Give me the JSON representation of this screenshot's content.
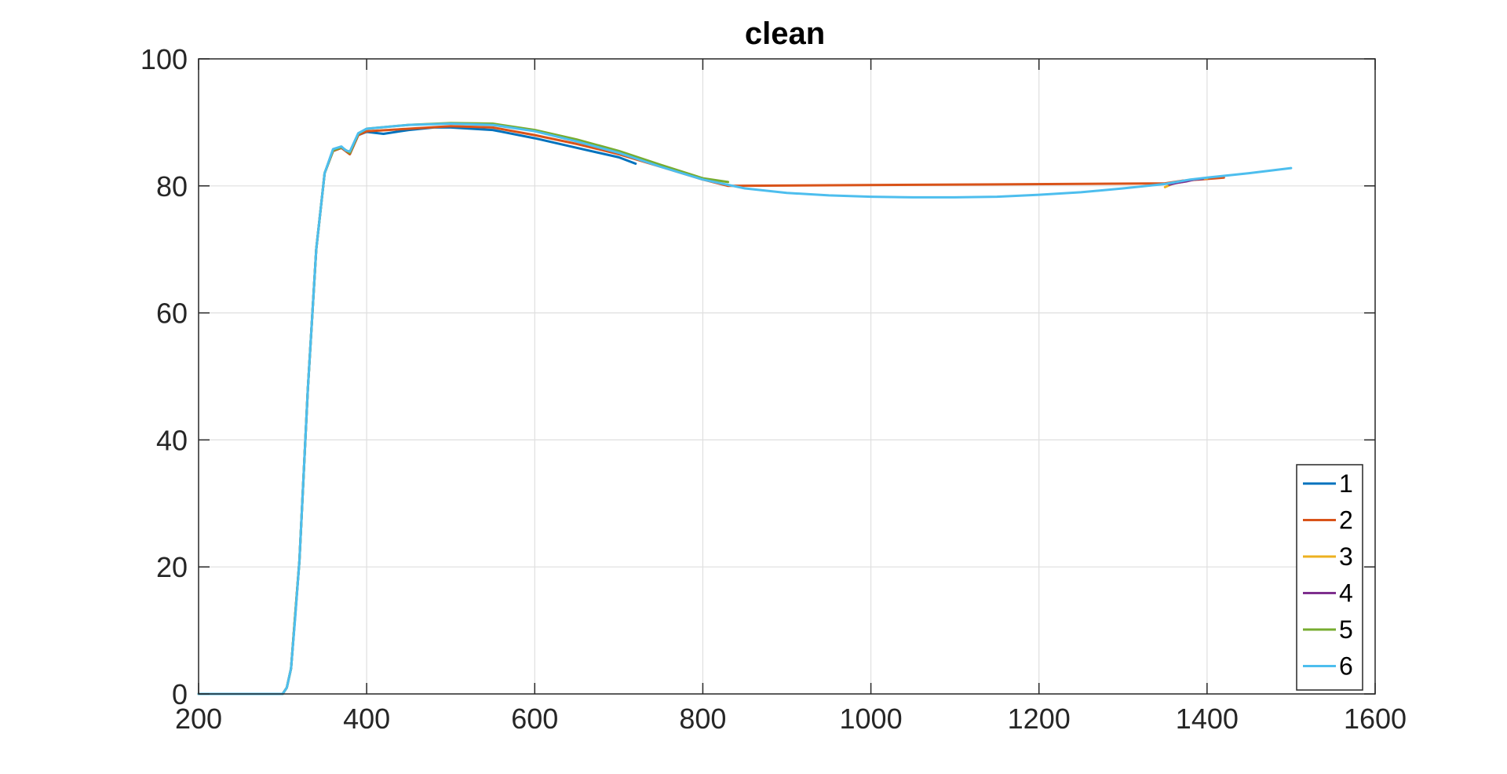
{
  "chart_data": {
    "type": "line",
    "title": "clean",
    "xlabel": "",
    "ylabel": "",
    "xlim": [
      200,
      1600
    ],
    "ylim": [
      0,
      100
    ],
    "xticks": [
      200,
      400,
      600,
      800,
      1000,
      1200,
      1400,
      1600
    ],
    "yticks": [
      0,
      20,
      40,
      60,
      80,
      100
    ],
    "xtick_labels": [
      "200",
      "400",
      "600",
      "800",
      "1000",
      "1200",
      "1400",
      "1600"
    ],
    "ytick_labels": [
      "0",
      "20",
      "40",
      "60",
      "80",
      "100"
    ],
    "grid": true,
    "legend_position": "bottom-right",
    "series": [
      {
        "name": "1",
        "color": "#0072BD",
        "x": [
          200,
          300,
          305,
          310,
          320,
          330,
          340,
          350,
          360,
          370,
          380,
          390,
          400,
          420,
          450,
          480,
          500,
          550,
          600,
          650,
          700,
          720
        ],
        "y": [
          0,
          0,
          1,
          4,
          21,
          48,
          70,
          82,
          85.5,
          86,
          85,
          88,
          88.5,
          88.2,
          88.8,
          89.2,
          89.2,
          88.8,
          87.5,
          86,
          84.5,
          83.5
        ]
      },
      {
        "name": "2",
        "color": "#D95319",
        "x": [
          200,
          300,
          305,
          310,
          320,
          330,
          340,
          350,
          360,
          370,
          380,
          390,
          400,
          450,
          500,
          550,
          600,
          650,
          700,
          750,
          800,
          830,
          1350,
          1370,
          1390,
          1410,
          1420
        ],
        "y": [
          0,
          0,
          1,
          4,
          21,
          48,
          70,
          82,
          85.5,
          86,
          85,
          88,
          88.6,
          89,
          89.4,
          89.2,
          88,
          86.6,
          85,
          83,
          81,
          80,
          80.4,
          80.8,
          81,
          81.2,
          81.3
        ]
      },
      {
        "name": "3",
        "color": "#EDB120",
        "x": [
          1350,
          1360,
          1370,
          1380,
          1390,
          1400
        ],
        "y": [
          79.8,
          80.4,
          80.6,
          80.9,
          81.1,
          81.2
        ]
      },
      {
        "name": "4",
        "color": "#7E2F8E",
        "x": [
          1355,
          1365,
          1375,
          1385,
          1395
        ],
        "y": [
          80.2,
          80.5,
          80.7,
          81,
          81.1
        ]
      },
      {
        "name": "5",
        "color": "#77AC30",
        "x": [
          200,
          300,
          305,
          310,
          320,
          330,
          340,
          350,
          360,
          370,
          380,
          390,
          400,
          450,
          500,
          550,
          600,
          650,
          700,
          750,
          800,
          830
        ],
        "y": [
          0,
          0,
          1,
          4,
          21,
          48,
          70,
          82,
          85.6,
          86.1,
          85.2,
          88.2,
          89,
          89.6,
          89.9,
          89.8,
          88.8,
          87.3,
          85.5,
          83.3,
          81.2,
          80.6
        ]
      },
      {
        "name": "6",
        "color": "#4DBEEE",
        "x": [
          200,
          300,
          305,
          310,
          315,
          320,
          330,
          340,
          350,
          360,
          370,
          375,
          380,
          390,
          400,
          450,
          500,
          550,
          600,
          650,
          700,
          750,
          800,
          850,
          900,
          950,
          1000,
          1050,
          1100,
          1150,
          1200,
          1250,
          1300,
          1350,
          1380,
          1400,
          1450,
          1500
        ],
        "y": [
          0,
          0,
          1,
          4,
          12,
          21,
          48,
          70,
          82,
          85.8,
          86.2,
          85.6,
          85.4,
          88.3,
          89,
          89.6,
          89.8,
          89.6,
          88.6,
          87,
          85.2,
          83,
          81,
          79.6,
          78.9,
          78.5,
          78.3,
          78.2,
          78.2,
          78.3,
          78.6,
          79,
          79.6,
          80.3,
          81,
          81.3,
          82,
          82.8
        ]
      }
    ]
  }
}
